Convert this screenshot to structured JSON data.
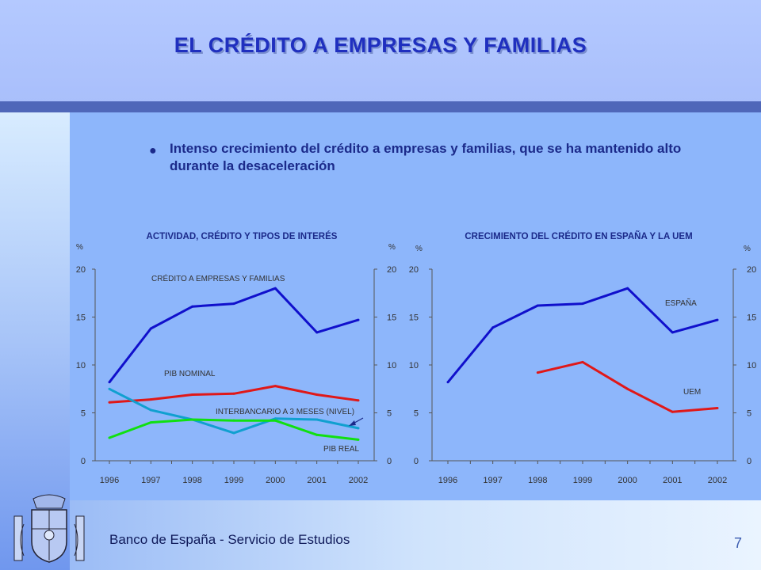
{
  "slide": {
    "title": "EL CRÉDITO A EMPRESAS Y FAMILIAS",
    "bullet": "Intenso crecimiento del crédito a empresas y familias, que se ha mantenido alto durante la desaceleración",
    "footer": "Banco de España - Servicio de Estudios",
    "page_number": "7"
  },
  "colors": {
    "blue": "#1010cc",
    "red": "#e01818",
    "green": "#10e010",
    "cyan": "#10a0d0",
    "title": "#1f2fbf"
  },
  "chart_data": [
    {
      "type": "line",
      "title": "ACTIVIDAD, CRÉDITO Y TIPOS DE INTERÉS",
      "y_unit_left": "%",
      "y_unit_right": "%",
      "ylim": [
        0,
        20
      ],
      "yticks": [
        0,
        5,
        10,
        15,
        20
      ],
      "x": [
        "1996",
        "1997",
        "1998",
        "1999",
        "2000",
        "2001",
        "2002"
      ],
      "series": [
        {
          "name": "CRÉDITO A EMPRESAS Y FAMILIAS",
          "color": "#1010cc",
          "values": [
            8.2,
            13.8,
            16.1,
            16.4,
            18.0,
            13.4,
            14.7
          ]
        },
        {
          "name": "PIB NOMINAL",
          "color": "#e01818",
          "values": [
            6.1,
            6.4,
            6.9,
            7.0,
            7.8,
            6.9,
            6.3
          ]
        },
        {
          "name": "INTERBANCARIO A 3 MESES (NIVEL)",
          "color": "#10a0d0",
          "values": [
            7.5,
            5.3,
            4.3,
            2.9,
            4.4,
            4.3,
            3.4
          ]
        },
        {
          "name": "PIB REAL",
          "color": "#10e010",
          "values": [
            2.4,
            4.0,
            4.3,
            4.2,
            4.2,
            2.7,
            2.2
          ]
        }
      ]
    },
    {
      "type": "line",
      "title": "CRECIMIENTO DEL CRÉDITO EN ESPAÑA Y LA UEM",
      "y_unit_left": "%",
      "y_unit_right": "%",
      "ylim": [
        0,
        20
      ],
      "yticks": [
        0,
        5,
        10,
        15,
        20
      ],
      "x": [
        "1996",
        "1997",
        "1998",
        "1999",
        "2000",
        "2001",
        "2002"
      ],
      "series": [
        {
          "name": "ESPAÑA",
          "color": "#1010cc",
          "values": [
            8.2,
            13.9,
            16.2,
            16.4,
            18.0,
            13.4,
            14.7
          ]
        },
        {
          "name": "UEM",
          "color": "#e01818",
          "values": [
            null,
            null,
            9.2,
            10.3,
            7.5,
            5.1,
            5.5
          ]
        }
      ]
    }
  ]
}
